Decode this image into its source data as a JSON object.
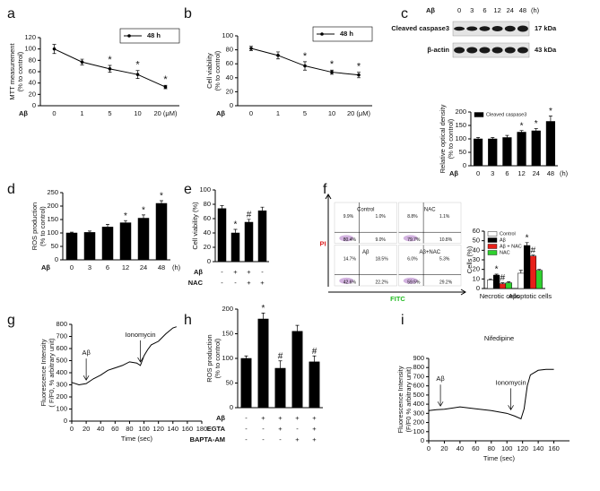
{
  "chart_data": [
    {
      "panel": "a",
      "type": "line",
      "categories": [
        "0",
        "1",
        "5",
        "10",
        "20 (μM)"
      ],
      "xlabel": "Aβ",
      "ylabel": [
        "MTT measurement",
        "(% to control)"
      ],
      "series": [
        {
          "name": "48 h",
          "color": "#000000",
          "values": [
            100,
            77,
            65,
            55,
            33
          ],
          "errors": [
            8,
            5,
            6,
            7,
            3
          ],
          "markers": [
            null,
            null,
            "*",
            "*",
            "*"
          ]
        }
      ],
      "ylim": [
        0,
        120
      ],
      "yticks": [
        0,
        20,
        40,
        60,
        80,
        100,
        120
      ]
    },
    {
      "panel": "b",
      "type": "line",
      "categories": [
        "0",
        "1",
        "5",
        "10",
        "20 (μM)"
      ],
      "xlabel": "Aβ",
      "ylabel": [
        "Cell viability",
        "(% to control)"
      ],
      "series": [
        {
          "name": "48 h",
          "color": "#000000",
          "values": [
            82,
            72,
            57,
            48,
            44
          ],
          "errors": [
            3,
            5,
            6,
            3,
            4
          ],
          "markers": [
            null,
            null,
            "*",
            "*",
            "*"
          ]
        }
      ],
      "ylim": [
        0,
        100
      ],
      "yticks": [
        0,
        20,
        40,
        60,
        80,
        100
      ]
    },
    {
      "panel": "c",
      "type": "blot",
      "xlabel": "Aβ",
      "lanes": [
        "0",
        "3",
        "6",
        "12",
        "24",
        "48"
      ],
      "xunit": "(h)",
      "bands": [
        {
          "name": "Cleaved caspase3",
          "size": "17 kDa"
        },
        {
          "name": "β-actin",
          "size": "43 kDa"
        }
      ]
    },
    {
      "type": "bar",
      "categories": [
        "0",
        "3",
        "6",
        "12",
        "24",
        "48"
      ],
      "xunit": "(h)",
      "xlabel": "Aβ",
      "ylabel": [
        "Relative optical density",
        "(% to control)"
      ],
      "legend": true,
      "series": [
        {
          "name": "Cleaved caspase3",
          "color": "#000000",
          "values": [
            100,
            100,
            105,
            125,
            130,
            165
          ],
          "errors": [
            5,
            5,
            8,
            6,
            8,
            20
          ],
          "markers": [
            null,
            null,
            null,
            "*",
            "*",
            "*"
          ]
        }
      ],
      "ylim": [
        0,
        200
      ],
      "yticks": [
        0,
        50,
        100,
        150,
        200
      ]
    },
    {
      "panel": "d",
      "type": "bar",
      "categories": [
        "0",
        "3",
        "6",
        "12",
        "24",
        "48"
      ],
      "xunit": "(h)",
      "xlabel": "Aβ",
      "ylabel": [
        "ROS production",
        "(% to control)"
      ],
      "series": [
        {
          "color": "#000000",
          "values": [
            100,
            102,
            122,
            138,
            155,
            210
          ],
          "errors": [
            3,
            5,
            10,
            8,
            12,
            10
          ],
          "markers": [
            null,
            null,
            null,
            "*",
            "*",
            "*"
          ]
        }
      ],
      "ylim": [
        0,
        250
      ],
      "yticks": [
        0,
        50,
        100,
        150,
        200,
        250
      ]
    },
    {
      "panel": "e",
      "type": "bar",
      "ylabel": [
        "Cell viability (%)"
      ],
      "conditions": [
        {
          "name": "Aβ",
          "signs": [
            "-",
            "+",
            "+",
            "-"
          ]
        },
        {
          "name": "NAC",
          "signs": [
            "-",
            "-",
            "+",
            "+"
          ]
        }
      ],
      "series": [
        {
          "color": "#000000",
          "values": [
            74,
            40,
            55,
            71
          ],
          "errors": [
            4,
            5,
            4,
            5
          ],
          "markers": [
            null,
            "*",
            "#",
            null
          ]
        }
      ],
      "ylim": [
        0,
        100
      ],
      "yticks": [
        0,
        20,
        40,
        60,
        80,
        100
      ]
    },
    {
      "panel": "f",
      "type": "flow",
      "xlabel": "FITC",
      "ylabel": "PI",
      "plots": [
        {
          "name": "Control",
          "quadrants": [
            "9.9%",
            "1.0%",
            "80.4%",
            "9.0%"
          ]
        },
        {
          "name": "NAC",
          "quadrants": [
            "8.8%",
            "1.1%",
            "79.7%",
            "10.8%"
          ]
        },
        {
          "name": "Aβ",
          "quadrants": [
            "14.7%",
            "18.5%",
            "42.6%",
            "22.2%"
          ]
        },
        {
          "name": "Aβ+NAC",
          "quadrants": [
            "6.0%",
            "5.3%",
            "59.5%",
            "29.2%"
          ]
        }
      ]
    },
    {
      "type": "bar",
      "categories": [
        "Necrotic cells",
        "Apoptotic cells"
      ],
      "ylabel": [
        "Cells (%)"
      ],
      "legend": true,
      "series": [
        {
          "name": "Control",
          "color": "#ffffff",
          "values": [
            9,
            16
          ],
          "errors": [
            1,
            3
          ]
        },
        {
          "name": "Aβ",
          "color": "#000000",
          "values": [
            14,
            45
          ],
          "errors": [
            1,
            3
          ],
          "markers": [
            "*",
            "*"
          ]
        },
        {
          "name": "Aβ + NAC",
          "color": "#e8201a",
          "values": [
            5,
            34
          ],
          "errors": [
            1,
            1
          ],
          "markers": [
            "#",
            "#"
          ]
        },
        {
          "name": "NAC",
          "color": "#2fd12f",
          "values": [
            6,
            19
          ],
          "errors": [
            1,
            1
          ]
        }
      ],
      "ylim": [
        0,
        60
      ],
      "yticks": [
        0,
        10,
        20,
        30,
        40,
        50,
        60
      ]
    },
    {
      "panel": "g",
      "type": "line",
      "xlabel": "Time (sec)",
      "ylabel": [
        "Fluorescence Intensity",
        "( F/F0, % arbitrary unit)"
      ],
      "x": [
        0,
        10,
        20,
        30,
        40,
        50,
        60,
        70,
        80,
        90,
        95,
        100,
        105,
        110,
        120,
        130,
        140,
        145
      ],
      "series": [
        {
          "color": "#000000",
          "values": [
            320,
            300,
            310,
            350,
            380,
            420,
            440,
            460,
            490,
            480,
            460,
            540,
            590,
            630,
            660,
            720,
            770,
            780
          ]
        }
      ],
      "annotations": [
        {
          "text": "Aβ",
          "x": 20
        },
        {
          "text": "Ionomycin",
          "x": 95
        }
      ],
      "xlim": [
        0,
        180
      ],
      "xticks": [
        0,
        20,
        40,
        60,
        80,
        100,
        120,
        140,
        160,
        180
      ],
      "ylim": [
        0,
        800
      ],
      "yticks": [
        0,
        100,
        200,
        300,
        400,
        500,
        600,
        700,
        800
      ]
    },
    {
      "panel": "h",
      "type": "bar",
      "ylabel": [
        "ROS production",
        "(% to control)"
      ],
      "conditions": [
        {
          "name": "Aβ",
          "signs": [
            "-",
            "+",
            "+",
            "+",
            "+"
          ]
        },
        {
          "name": "EGTA",
          "signs": [
            "-",
            "-",
            "+",
            "-",
            "+"
          ]
        },
        {
          "name": "BAPTA-AM",
          "signs": [
            "-",
            "-",
            "-",
            "+",
            "+"
          ]
        }
      ],
      "series": [
        {
          "color": "#000000",
          "values": [
            100,
            180,
            80,
            155,
            93
          ],
          "errors": [
            5,
            12,
            15,
            12,
            12
          ],
          "markers": [
            null,
            "*",
            "#",
            null,
            "#"
          ]
        }
      ],
      "ylim": [
        0,
        200
      ],
      "yticks": [
        0,
        50,
        100,
        150,
        200
      ]
    },
    {
      "panel": "i",
      "type": "line",
      "title": "Nifedipine",
      "xlabel": "Time (sec)",
      "ylabel": [
        "Fluorescence Intensity",
        "(F/F0 % arbitrary unit)"
      ],
      "x": [
        0,
        10,
        20,
        40,
        60,
        80,
        100,
        110,
        118,
        122,
        126,
        130,
        140,
        150,
        160
      ],
      "series": [
        {
          "color": "#000000",
          "values": [
            330,
            340,
            345,
            370,
            350,
            330,
            300,
            270,
            240,
            350,
            600,
            720,
            770,
            780,
            780
          ]
        }
      ],
      "annotations": [
        {
          "text": "Aβ",
          "x": 15
        },
        {
          "text": "Ionomycin",
          "x": 105
        }
      ],
      "xlim": [
        0,
        180
      ],
      "xticks": [
        0,
        20,
        40,
        60,
        80,
        100,
        120,
        140,
        160
      ],
      "ylim": [
        0,
        900
      ],
      "yticks": [
        0,
        100,
        200,
        300,
        400,
        500,
        600,
        700,
        800,
        900
      ]
    }
  ]
}
